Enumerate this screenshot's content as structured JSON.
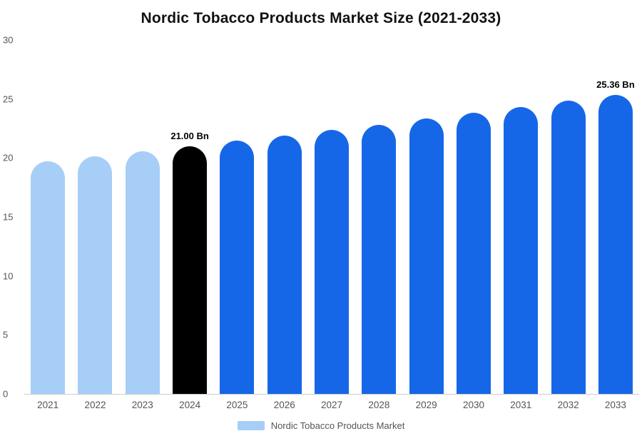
{
  "chart_data": {
    "type": "bar",
    "title": "Nordic Tobacco Products Market Size (2021-2033)",
    "categories": [
      "2021",
      "2022",
      "2023",
      "2024",
      "2025",
      "2026",
      "2027",
      "2028",
      "2029",
      "2030",
      "2031",
      "2032",
      "2033"
    ],
    "values": [
      19.72,
      20.14,
      20.56,
      21.0,
      21.45,
      21.9,
      22.36,
      22.83,
      23.32,
      23.81,
      24.31,
      24.83,
      25.36
    ],
    "unit": "Bn",
    "xlabel": "",
    "ylabel": "",
    "ylim": [
      0,
      30
    ],
    "yticks": [
      0,
      5,
      10,
      15,
      20,
      25,
      30
    ],
    "grid": false,
    "legend_position": "bottom",
    "bar_colors": [
      "#A6CEF7",
      "#A6CEF7",
      "#A6CEF7",
      "#000000",
      "#1667E8",
      "#1667E8",
      "#1667E8",
      "#1667E8",
      "#1667E8",
      "#1667E8",
      "#1667E8",
      "#1667E8",
      "#1667E8"
    ],
    "point_labels": [
      "",
      "",
      "",
      "21.00 Bn",
      "",
      "",
      "",
      "",
      "",
      "",
      "",
      "",
      "25.36 Bn"
    ]
  },
  "legend": {
    "label": "Nordic Tobacco Products Market",
    "swatch_color": "#A6CEF7"
  }
}
